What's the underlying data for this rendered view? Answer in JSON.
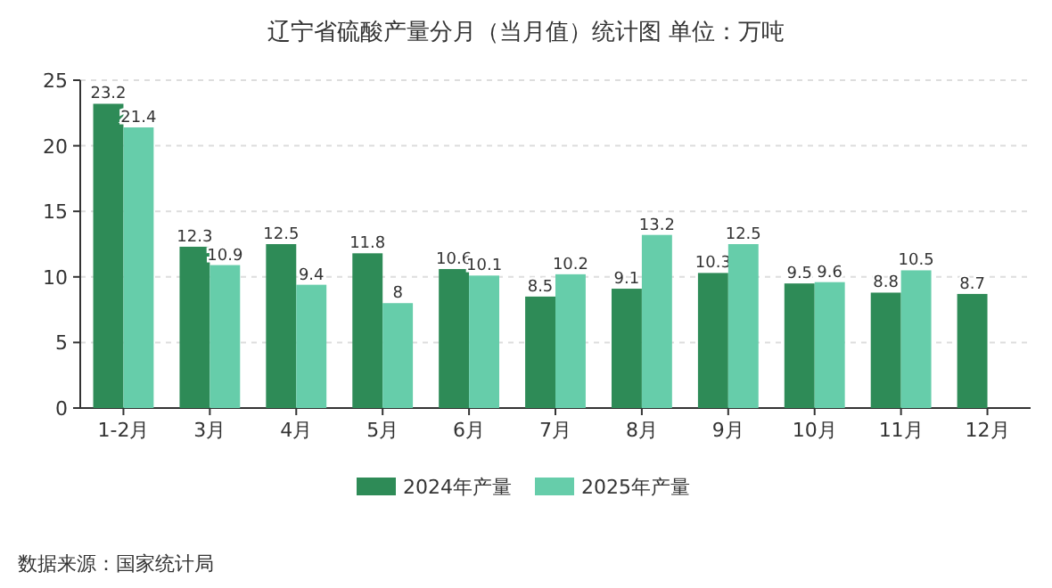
{
  "chart_data": {
    "type": "bar",
    "title": "辽宁省硫酸产量分月（当月值）统计图 单位：万吨",
    "categories": [
      "1-2月",
      "3月",
      "4月",
      "5月",
      "6月",
      "7月",
      "8月",
      "9月",
      "10月",
      "11月",
      "12月"
    ],
    "series": [
      {
        "name": "2024年产量",
        "color": "#2e8b57",
        "values": [
          23.2,
          12.3,
          12.5,
          11.8,
          10.6,
          8.5,
          9.1,
          10.3,
          9.5,
          8.8,
          8.7
        ]
      },
      {
        "name": "2025年产量",
        "color": "#66cdaa",
        "values": [
          21.4,
          10.9,
          9.4,
          8,
          10.1,
          10.2,
          13.2,
          12.5,
          9.6,
          10.5,
          null
        ]
      }
    ],
    "ylim": [
      0,
      25
    ],
    "yticks": [
      0,
      5,
      10,
      15,
      20,
      25
    ],
    "grid": "y",
    "legend": "bottom",
    "data_labels": true,
    "annotations": [
      "数据来源：国家统计局"
    ]
  }
}
